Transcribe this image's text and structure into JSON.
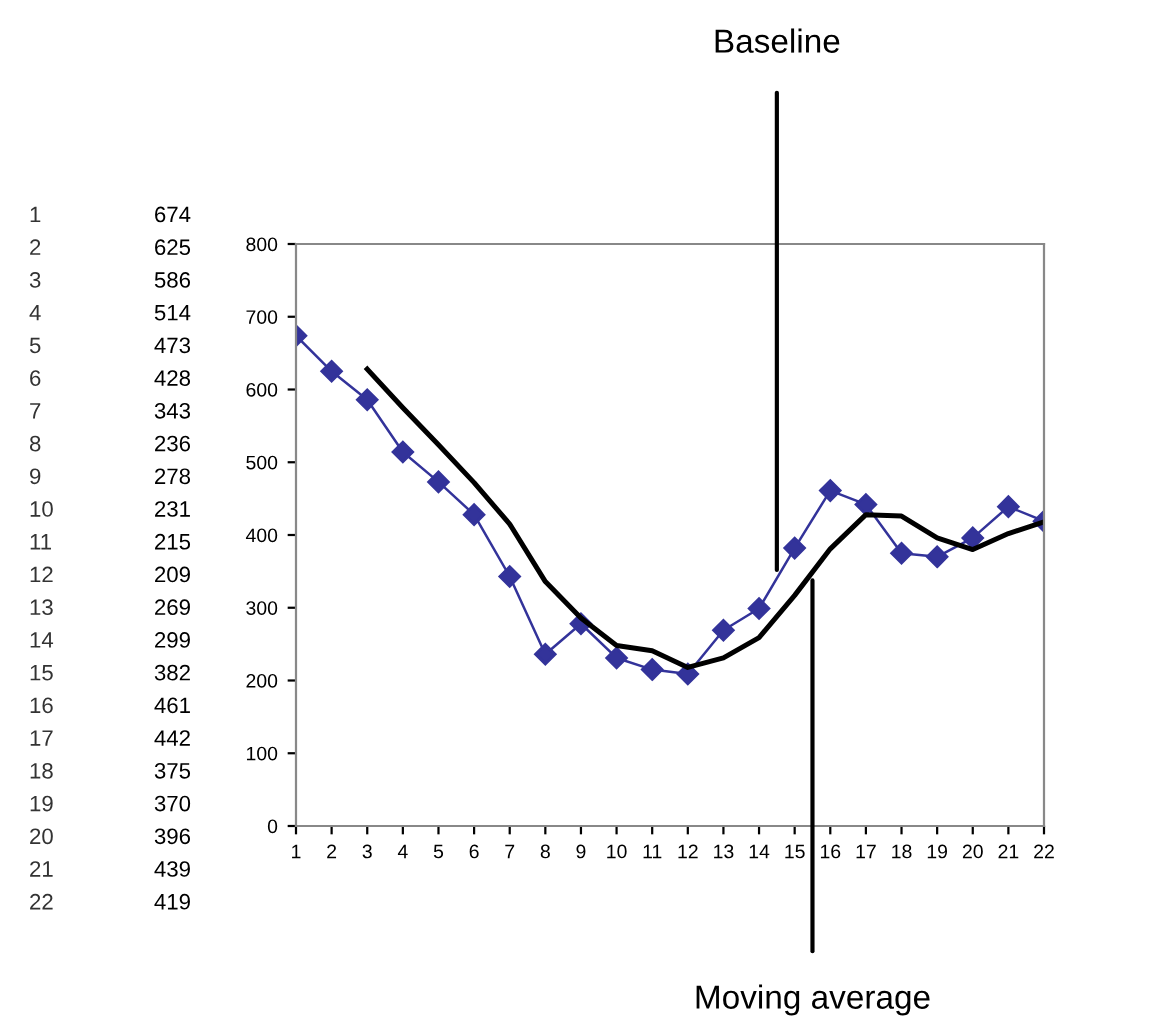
{
  "chart_data": {
    "type": "line",
    "x": [
      1,
      2,
      3,
      4,
      5,
      6,
      7,
      8,
      9,
      10,
      11,
      12,
      13,
      14,
      15,
      16,
      17,
      18,
      19,
      20,
      21,
      22
    ],
    "series": [
      {
        "name": "Baseline",
        "color": "#33339a",
        "marker": "diamond",
        "values": [
          674,
          625,
          586,
          514,
          473,
          428,
          343,
          236,
          278,
          231,
          215,
          209,
          269,
          299,
          382,
          461,
          442,
          375,
          370,
          396,
          439,
          419
        ]
      },
      {
        "name": "Moving average",
        "color": "#000000",
        "x": [
          3,
          4,
          5,
          6,
          7,
          8,
          9,
          10,
          11,
          12,
          13,
          14,
          15,
          16,
          17,
          18,
          19,
          20,
          21,
          22
        ],
        "values": [
          628,
          575,
          524,
          472,
          415,
          336,
          286,
          248,
          241,
          218,
          231,
          259,
          317,
          381,
          428,
          426,
          396,
          380,
          402,
          418
        ]
      }
    ],
    "annotations": [
      "1",
      "674",
      "2",
      "625",
      "3",
      "586",
      "4",
      "514",
      "5",
      "473",
      "6",
      "428",
      "7",
      "343",
      "8",
      "236",
      "9",
      "278",
      "10",
      "231",
      "11",
      "215",
      "12",
      "209",
      "13",
      "269",
      "14",
      "299",
      "15",
      "382",
      "16",
      "461",
      "17",
      "442",
      "18",
      "375",
      "19",
      "370",
      "20",
      "396",
      "21",
      "439",
      "22",
      "419"
    ],
    "xlim": [
      1,
      22
    ],
    "xticks": [
      1,
      2,
      3,
      4,
      5,
      6,
      7,
      8,
      9,
      10,
      11,
      12,
      13,
      14,
      15,
      16,
      17,
      18,
      19,
      20,
      21,
      22
    ],
    "ylim": [
      0,
      800
    ],
    "yticks": [
      0,
      100,
      200,
      300,
      400,
      500,
      600,
      700,
      800
    ],
    "grid": false
  }
}
